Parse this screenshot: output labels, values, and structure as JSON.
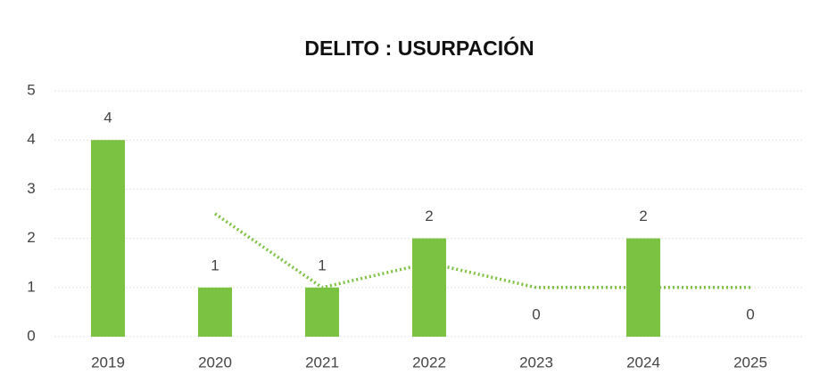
{
  "chart_data": {
    "type": "bar",
    "title": "DELITO : USURPACIÓN",
    "categories": [
      "2019",
      "2020",
      "2021",
      "2022",
      "2023",
      "2024",
      "2025"
    ],
    "values": [
      4,
      1,
      1,
      2,
      0,
      2,
      0
    ],
    "color": "#7cc242",
    "trendline": {
      "values": [
        null,
        2.5,
        1,
        1.5,
        1,
        1,
        1
      ],
      "color": "#7cc242",
      "style": "dotted"
    },
    "ylim": [
      0,
      5
    ],
    "yticks": [
      0,
      1,
      2,
      3,
      4,
      5
    ],
    "grid": true
  }
}
